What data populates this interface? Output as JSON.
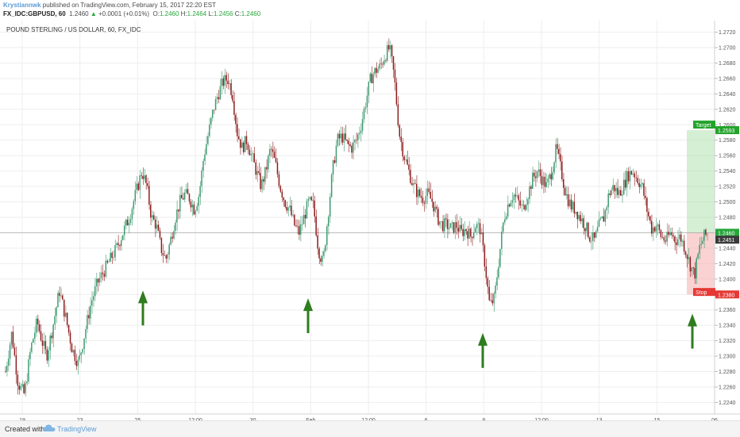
{
  "header": {
    "author": "Krystiannwk",
    "published": " published on TradingView.com, February 15, 2017 22:20 EST",
    "symbol": "FX_IDC:GBPUSD, 60",
    "last": "1.2460",
    "change": "+0.0001 (+0.01%)",
    "o_label": "O:",
    "o": "1.2460",
    "h_label": "H:",
    "h": "1.2464",
    "l_label": "L:",
    "l": "1.2456",
    "c_label": "C:",
    "c": "1.2460"
  },
  "footer": {
    "created": "Created with",
    "brand": "TradingView"
  },
  "chart_data": {
    "type": "candlestick",
    "title": "POUND STERLING / US DOLLAR, 60, FX_IDC",
    "ylim": [
      1.2225,
      1.2735
    ],
    "y_ticks": [
      "1.2240",
      "1.2260",
      "1.2280",
      "1.2300",
      "1.2320",
      "1.2340",
      "1.2360",
      "1.2380",
      "1.2400",
      "1.2420",
      "1.2440",
      "1.2460",
      "1.2480",
      "1.2500",
      "1.2520",
      "1.2540",
      "1.2560",
      "1.2580",
      "1.2600",
      "1.2620",
      "1.2640",
      "1.2660",
      "1.2680",
      "1.2700",
      "1.2720"
    ],
    "x_tick_labels": [
      "19",
      "23",
      "25",
      "12:00",
      "30",
      "Feb",
      "12:00",
      "6",
      "8",
      "12:00",
      "13",
      "15",
      "06"
    ],
    "grid": true,
    "colors": {
      "up": "#3d9970",
      "down": "#8b1a1a",
      "grid": "#eeeeee",
      "arrow": "#2e7d1e",
      "target": "#22a32a",
      "stop": "#e53935",
      "last": "#26a63a"
    },
    "price_path": [
      [
        0,
        1.228
      ],
      [
        4,
        1.233
      ],
      [
        8,
        1.2265
      ],
      [
        12,
        1.225
      ],
      [
        16,
        1.231
      ],
      [
        20,
        1.2345
      ],
      [
        23,
        1.232
      ],
      [
        26,
        1.23
      ],
      [
        30,
        1.234
      ],
      [
        34,
        1.2385
      ],
      [
        38,
        1.235
      ],
      [
        42,
        1.231
      ],
      [
        46,
        1.229
      ],
      [
        50,
        1.233
      ],
      [
        54,
        1.237
      ],
      [
        58,
        1.2395
      ],
      [
        62,
        1.241
      ],
      [
        66,
        1.2425
      ],
      [
        70,
        1.244
      ],
      [
        74,
        1.246
      ],
      [
        78,
        1.248
      ],
      [
        82,
        1.251
      ],
      [
        86,
        1.254
      ],
      [
        89,
        1.252
      ],
      [
        92,
        1.248
      ],
      [
        95,
        1.247
      ],
      [
        98,
        1.244
      ],
      [
        101,
        1.2425
      ],
      [
        104,
        1.245
      ],
      [
        107,
        1.248
      ],
      [
        110,
        1.25
      ],
      [
        113,
        1.251
      ],
      [
        116,
        1.2505
      ],
      [
        119,
        1.249
      ],
      [
        122,
        1.251
      ],
      [
        125,
        1.256
      ],
      [
        128,
        1.259
      ],
      [
        131,
        1.262
      ],
      [
        134,
        1.264
      ],
      [
        137,
        1.2655
      ],
      [
        140,
        1.266
      ],
      [
        143,
        1.264
      ],
      [
        146,
        1.259
      ],
      [
        149,
        1.257
      ],
      [
        152,
        1.258
      ],
      [
        155,
        1.256
      ],
      [
        158,
        1.254
      ],
      [
        161,
        1.252
      ],
      [
        164,
        1.254
      ],
      [
        167,
        1.257
      ],
      [
        170,
        1.255
      ],
      [
        173,
        1.252
      ],
      [
        176,
        1.25
      ],
      [
        179,
        1.249
      ],
      [
        182,
        1.247
      ],
      [
        185,
        1.246
      ],
      [
        188,
        1.248
      ],
      [
        191,
        1.25
      ],
      [
        194,
        1.2495
      ],
      [
        197,
        1.244
      ],
      [
        200,
        1.242
      ],
      [
        203,
        1.248
      ],
      [
        206,
        1.254
      ],
      [
        209,
        1.258
      ],
      [
        212,
        1.2585
      ],
      [
        215,
        1.2575
      ],
      [
        218,
        1.257
      ],
      [
        221,
        1.258
      ],
      [
        224,
        1.26
      ],
      [
        227,
        1.263
      ],
      [
        230,
        1.266
      ],
      [
        233,
        1.267
      ],
      [
        236,
        1.2675
      ],
      [
        239,
        1.269
      ],
      [
        242,
        1.27
      ],
      [
        245,
        1.266
      ],
      [
        248,
        1.259
      ],
      [
        251,
        1.256
      ],
      [
        254,
        1.254
      ],
      [
        257,
        1.252
      ],
      [
        260,
        1.251
      ],
      [
        263,
        1.2505
      ],
      [
        266,
        1.251
      ],
      [
        269,
        1.25
      ],
      [
        272,
        1.248
      ],
      [
        275,
        1.247
      ],
      [
        278,
        1.247
      ],
      [
        281,
        1.2465
      ],
      [
        284,
        1.247
      ],
      [
        287,
        1.246
      ],
      [
        290,
        1.2465
      ],
      [
        293,
        1.2455
      ],
      [
        296,
        1.247
      ],
      [
        299,
        1.2465
      ],
      [
        302,
        1.242
      ],
      [
        305,
        1.2365
      ],
      [
        308,
        1.2375
      ],
      [
        311,
        1.243
      ],
      [
        314,
        1.248
      ],
      [
        317,
        1.25
      ],
      [
        320,
        1.251
      ],
      [
        323,
        1.25
      ],
      [
        326,
        1.249
      ],
      [
        329,
        1.251
      ],
      [
        332,
        1.253
      ],
      [
        335,
        1.254
      ],
      [
        338,
        1.253
      ],
      [
        341,
        1.252
      ],
      [
        344,
        1.254
      ],
      [
        347,
        1.257
      ],
      [
        350,
        1.254
      ],
      [
        353,
        1.251
      ],
      [
        356,
        1.2495
      ],
      [
        359,
        1.249
      ],
      [
        362,
        1.248
      ],
      [
        365,
        1.247
      ],
      [
        368,
        1.2455
      ],
      [
        371,
        1.245
      ],
      [
        374,
        1.247
      ],
      [
        377,
        1.248
      ],
      [
        380,
        1.251
      ],
      [
        383,
        1.252
      ],
      [
        386,
        1.251
      ],
      [
        389,
        1.252
      ],
      [
        392,
        1.2535
      ],
      [
        395,
        1.254
      ],
      [
        398,
        1.253
      ],
      [
        401,
        1.252
      ],
      [
        404,
        1.249
      ],
      [
        407,
        1.2465
      ],
      [
        410,
        1.247
      ],
      [
        413,
        1.2455
      ],
      [
        416,
        1.245
      ],
      [
        419,
        1.246
      ],
      [
        422,
        1.245
      ],
      [
        425,
        1.2455
      ],
      [
        428,
        1.244
      ],
      [
        431,
        1.242
      ],
      [
        434,
        1.2405
      ],
      [
        437,
        1.244
      ],
      [
        440,
        1.2455
      ],
      [
        443,
        1.246
      ]
    ],
    "annotations": {
      "arrow_positions": [
        {
          "price": 1.242,
          "label": "arrow-1"
        },
        {
          "price": 1.241,
          "label": "arrow-2"
        },
        {
          "price": 1.2365,
          "label": "arrow-3"
        },
        {
          "price": 1.239,
          "label": "arrow-4"
        }
      ],
      "target_label": "Target",
      "target_price": "1.2593",
      "stop_label": "Stop",
      "stop_price": "1.2380",
      "last_price": "1.2460",
      "entry_price": "1.2451"
    }
  }
}
